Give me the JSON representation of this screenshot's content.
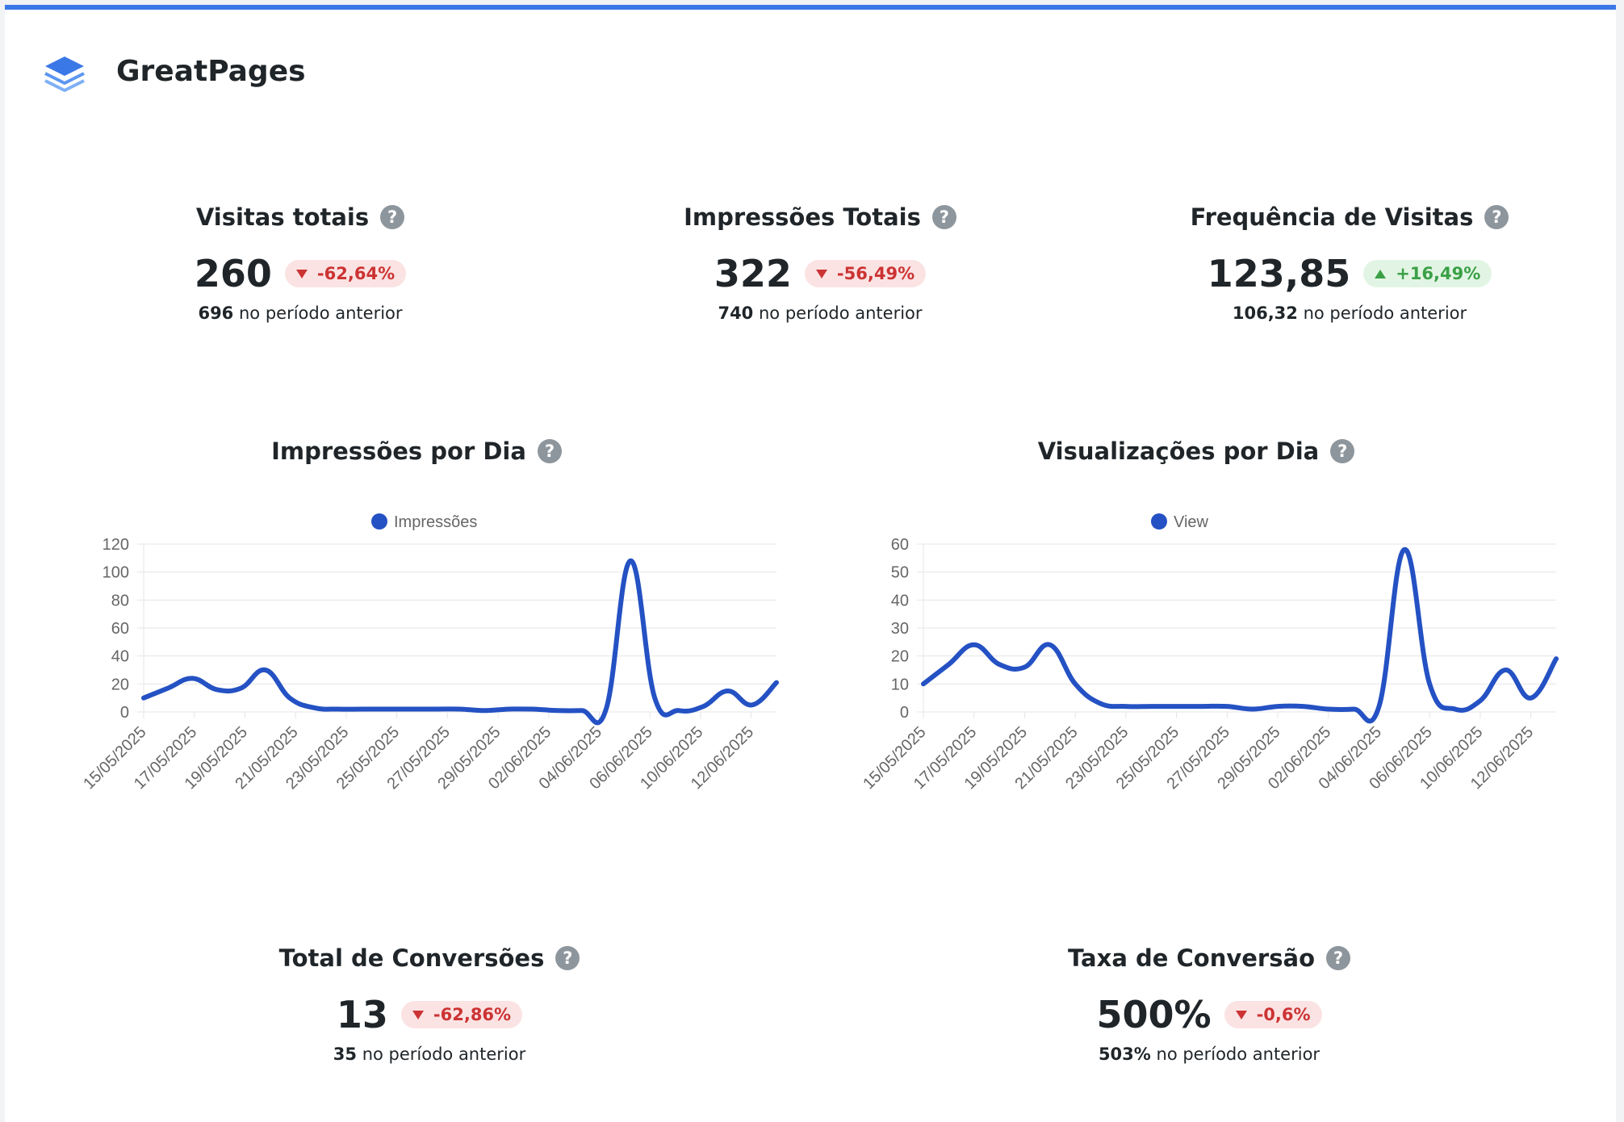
{
  "brand": {
    "name": "GreatPages",
    "icon": "layers-icon"
  },
  "colors": {
    "accent": "#3b78e7",
    "line": "#2451c3",
    "down": "#cc3333",
    "up": "#3ba047"
  },
  "metrics": {
    "visits": {
      "title": "Visitas totais",
      "value": "260",
      "change": "-62,64%",
      "trend": "down",
      "prev_value": "696",
      "prev_text": "no período anterior"
    },
    "impressions": {
      "title": "Impressões Totais",
      "value": "322",
      "change": "-56,49%",
      "trend": "down",
      "prev_value": "740",
      "prev_text": "no período anterior"
    },
    "frequency": {
      "title": "Frequência de Visitas",
      "value": "123,85",
      "change": "+16,49%",
      "trend": "up",
      "prev_value": "106,32",
      "prev_text": "no período anterior"
    },
    "conversions": {
      "title": "Total de Conversões",
      "value": "13",
      "change": "-62,86%",
      "trend": "down",
      "prev_value": "35",
      "prev_text": "no período anterior"
    },
    "conversion_rate": {
      "title": "Taxa de Conversão",
      "value": "500%",
      "change": "-0,6%",
      "trend": "down",
      "prev_value": "503%",
      "prev_text": "no período anterior"
    }
  },
  "help_glyph": "?",
  "chart_data": [
    {
      "type": "line",
      "title": "Impressões por Dia",
      "series": [
        {
          "name": "Impressões",
          "values": [
            10,
            17,
            24,
            16,
            17,
            30,
            10,
            3,
            2,
            2,
            2,
            2,
            2,
            2,
            1,
            2,
            2,
            1,
            1,
            2,
            108,
            10,
            1,
            4,
            15,
            5,
            21
          ]
        }
      ],
      "ylim": [
        0,
        120
      ],
      "yticks": [
        0,
        20,
        40,
        60,
        80,
        100,
        120
      ],
      "xlabels": [
        "15/05/2025",
        "17/05/2025",
        "19/05/2025",
        "21/05/2025",
        "23/05/2025",
        "25/05/2025",
        "27/05/2025",
        "29/05/2025",
        "02/06/2025",
        "04/06/2025",
        "06/06/2025",
        "10/06/2025",
        "12/06/2025"
      ],
      "legend": "top",
      "grid": true
    },
    {
      "type": "line",
      "title": "Visualizações por Dia",
      "series": [
        {
          "name": "View",
          "values": [
            10,
            17,
            24,
            17,
            16,
            24,
            10,
            3,
            2,
            2,
            2,
            2,
            2,
            1,
            2,
            2,
            1,
            1,
            2,
            58,
            10,
            1,
            4,
            15,
            5,
            19
          ]
        }
      ],
      "ylim": [
        0,
        60
      ],
      "yticks": [
        0,
        10,
        20,
        30,
        40,
        50,
        60
      ],
      "xlabels": [
        "15/05/2025",
        "17/05/2025",
        "19/05/2025",
        "21/05/2025",
        "23/05/2025",
        "25/05/2025",
        "27/05/2025",
        "29/05/2025",
        "02/06/2025",
        "04/06/2025",
        "06/06/2025",
        "10/06/2025",
        "12/06/2025"
      ],
      "legend": "top",
      "grid": true
    }
  ]
}
